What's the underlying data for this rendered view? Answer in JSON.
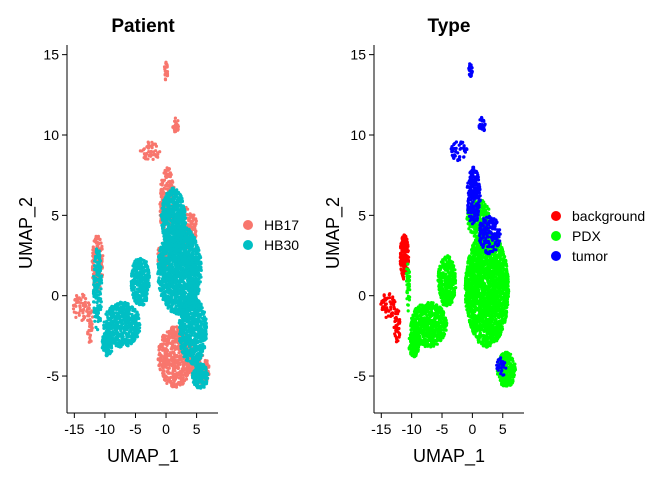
{
  "chart_data": [
    {
      "type": "scatter",
      "title": "Patient",
      "xlabel": "UMAP_1",
      "ylabel": "UMAP_2",
      "xlim": [
        -16.2,
        8.5
      ],
      "ylim": [
        -7.3,
        15.6
      ],
      "xticks": [
        -15,
        -10,
        -5,
        0,
        5
      ],
      "yticks": [
        -5,
        0,
        5,
        10,
        15
      ],
      "x_tick_labels": [
        "-15",
        "-10",
        "-5",
        "0",
        "5"
      ],
      "y_tick_labels": [
        "-5",
        "0",
        "5",
        "10",
        "15"
      ],
      "grid": false,
      "legend_position": "right",
      "series": [
        {
          "name": "HB17",
          "color": "#F8766D",
          "regions": [
            {
              "kind": "ellipse",
              "cx": -11.2,
              "cy": 2.0,
              "rx": 0.9,
              "ry": 1.8,
              "n": 170
            },
            {
              "kind": "ellipse",
              "cx": -13.8,
              "cy": -0.7,
              "rx": 1.4,
              "ry": 0.9,
              "n": 50
            },
            {
              "kind": "ellipse",
              "cx": -12.4,
              "cy": -1.8,
              "rx": 0.5,
              "ry": 1.2,
              "n": 40
            },
            {
              "kind": "ellipse",
              "cx": -2.6,
              "cy": 9.0,
              "rx": 1.6,
              "ry": 0.6,
              "n": 45
            },
            {
              "kind": "ellipse",
              "cx": 0.0,
              "cy": 14.0,
              "rx": 0.3,
              "ry": 0.6,
              "n": 20
            },
            {
              "kind": "ellipse",
              "cx": 1.6,
              "cy": 10.6,
              "rx": 0.5,
              "ry": 0.5,
              "n": 30
            },
            {
              "kind": "ellipse",
              "cx": 0.2,
              "cy": 5.8,
              "rx": 1.3,
              "ry": 2.2,
              "n": 220
            },
            {
              "kind": "ellipse",
              "cx": 3.5,
              "cy": 4.2,
              "rx": 1.6,
              "ry": 1.3,
              "n": 140
            },
            {
              "kind": "ellipse",
              "cx": 1.5,
              "cy": -3.8,
              "rx": 2.8,
              "ry": 1.9,
              "n": 480
            },
            {
              "kind": "ellipse",
              "cx": 5.6,
              "cy": -4.6,
              "rx": 1.5,
              "ry": 1.0,
              "n": 140
            },
            {
              "kind": "ellipse",
              "cx": -0.3,
              "cy": 2.5,
              "rx": 1.1,
              "ry": 0.8,
              "n": 110
            }
          ]
        },
        {
          "name": "HB30",
          "color": "#00BFC4",
          "regions": [
            {
              "kind": "ellipse",
              "cx": -11.2,
              "cy": 0.4,
              "rx": 0.7,
              "ry": 2.6,
              "n": 160
            },
            {
              "kind": "ellipse",
              "cx": -7.2,
              "cy": -1.8,
              "rx": 3.0,
              "ry": 1.4,
              "n": 520
            },
            {
              "kind": "ellipse",
              "cx": -9.6,
              "cy": -3.0,
              "rx": 0.9,
              "ry": 0.8,
              "n": 120
            },
            {
              "kind": "ellipse",
              "cx": -4.2,
              "cy": 0.9,
              "rx": 1.5,
              "ry": 1.6,
              "n": 320
            },
            {
              "kind": "ellipse",
              "cx": 2.2,
              "cy": 1.6,
              "rx": 3.6,
              "ry": 2.8,
              "n": 1500
            },
            {
              "kind": "ellipse",
              "cx": 1.2,
              "cy": 4.8,
              "rx": 2.0,
              "ry": 1.9,
              "n": 520
            },
            {
              "kind": "ellipse",
              "cx": 4.4,
              "cy": -2.2,
              "rx": 2.3,
              "ry": 2.1,
              "n": 600
            },
            {
              "kind": "ellipse",
              "cx": 5.6,
              "cy": -5.0,
              "rx": 1.3,
              "ry": 0.8,
              "n": 170
            }
          ]
        }
      ]
    },
    {
      "type": "scatter",
      "title": "Type",
      "xlabel": "UMAP_1",
      "ylabel": "UMAP_2",
      "xlim": [
        -16.2,
        8.5
      ],
      "ylim": [
        -7.3,
        15.6
      ],
      "xticks": [
        -15,
        -10,
        -5,
        0,
        5
      ],
      "yticks": [
        -5,
        0,
        5,
        10,
        15
      ],
      "x_tick_labels": [
        "-15",
        "-10",
        "-5",
        "0",
        "5"
      ],
      "y_tick_labels": [
        "-5",
        "0",
        "5",
        "10",
        "15"
      ],
      "grid": false,
      "legend_position": "right",
      "series": [
        {
          "name": "background",
          "color": "#FF0000",
          "regions": [
            {
              "kind": "ellipse",
              "cx": -11.2,
              "cy": 2.4,
              "rx": 0.7,
              "ry": 1.4,
              "n": 180
            },
            {
              "kind": "ellipse",
              "cx": -13.9,
              "cy": -0.6,
              "rx": 1.3,
              "ry": 0.8,
              "n": 55
            },
            {
              "kind": "ellipse",
              "cx": -12.4,
              "cy": -1.8,
              "rx": 0.5,
              "ry": 1.2,
              "n": 40
            }
          ]
        },
        {
          "name": "PDX",
          "color": "#00FF00",
          "regions": [
            {
              "kind": "ellipse",
              "cx": -7.2,
              "cy": -1.8,
              "rx": 3.0,
              "ry": 1.4,
              "n": 560
            },
            {
              "kind": "ellipse",
              "cx": -9.6,
              "cy": -3.0,
              "rx": 0.9,
              "ry": 0.8,
              "n": 120
            },
            {
              "kind": "ellipse",
              "cx": -4.2,
              "cy": 0.9,
              "rx": 1.5,
              "ry": 1.6,
              "n": 320
            },
            {
              "kind": "ellipse",
              "cx": 2.4,
              "cy": 0.4,
              "rx": 3.6,
              "ry": 3.6,
              "n": 2000
            },
            {
              "kind": "ellipse",
              "cx": 1.0,
              "cy": 4.8,
              "rx": 2.0,
              "ry": 1.2,
              "n": 260
            },
            {
              "kind": "ellipse",
              "cx": 5.6,
              "cy": -4.6,
              "rx": 1.5,
              "ry": 1.1,
              "n": 260
            },
            {
              "kind": "ellipse",
              "cx": -10.6,
              "cy": 0.6,
              "rx": 0.3,
              "ry": 1.6,
              "n": 40
            }
          ]
        },
        {
          "name": "tumor",
          "color": "#0000FF",
          "regions": [
            {
              "kind": "ellipse",
              "cx": -2.2,
              "cy": 9.0,
              "rx": 1.4,
              "ry": 0.6,
              "n": 45
            },
            {
              "kind": "ellipse",
              "cx": -0.3,
              "cy": 14.0,
              "rx": 0.3,
              "ry": 0.5,
              "n": 20
            },
            {
              "kind": "ellipse",
              "cx": 1.6,
              "cy": 10.6,
              "rx": 0.5,
              "ry": 0.5,
              "n": 30
            },
            {
              "kind": "ellipse",
              "cx": 0.2,
              "cy": 6.2,
              "rx": 1.1,
              "ry": 1.8,
              "n": 200
            },
            {
              "kind": "ellipse",
              "cx": 2.8,
              "cy": 3.8,
              "rx": 1.8,
              "ry": 1.2,
              "n": 160
            },
            {
              "kind": "ellipse",
              "cx": 4.8,
              "cy": -4.4,
              "rx": 0.8,
              "ry": 0.6,
              "n": 25
            }
          ]
        }
      ]
    }
  ]
}
